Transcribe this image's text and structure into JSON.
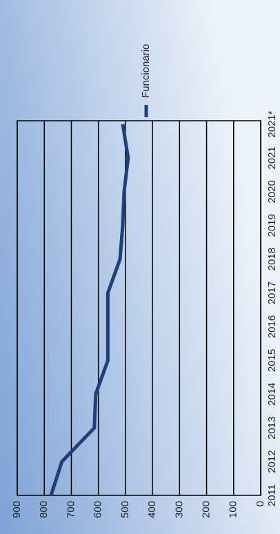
{
  "chart_data": {
    "type": "line",
    "categories": [
      "2011",
      "2012",
      "2013",
      "2014",
      "2015",
      "2016",
      "2017",
      "2018",
      "2019",
      "2020",
      "2021",
      "2021*"
    ],
    "series": [
      {
        "name": "Funcionario",
        "color": "#1f3f7a",
        "values": [
          775,
          735,
          615,
          610,
          565,
          565,
          565,
          520,
          510,
          505,
          490,
          510
        ]
      }
    ],
    "ylim": [
      0,
      900
    ],
    "yticks": [
      0,
      100,
      200,
      300,
      400,
      500,
      600,
      700,
      800,
      900
    ],
    "grid": true,
    "legend": "right"
  }
}
